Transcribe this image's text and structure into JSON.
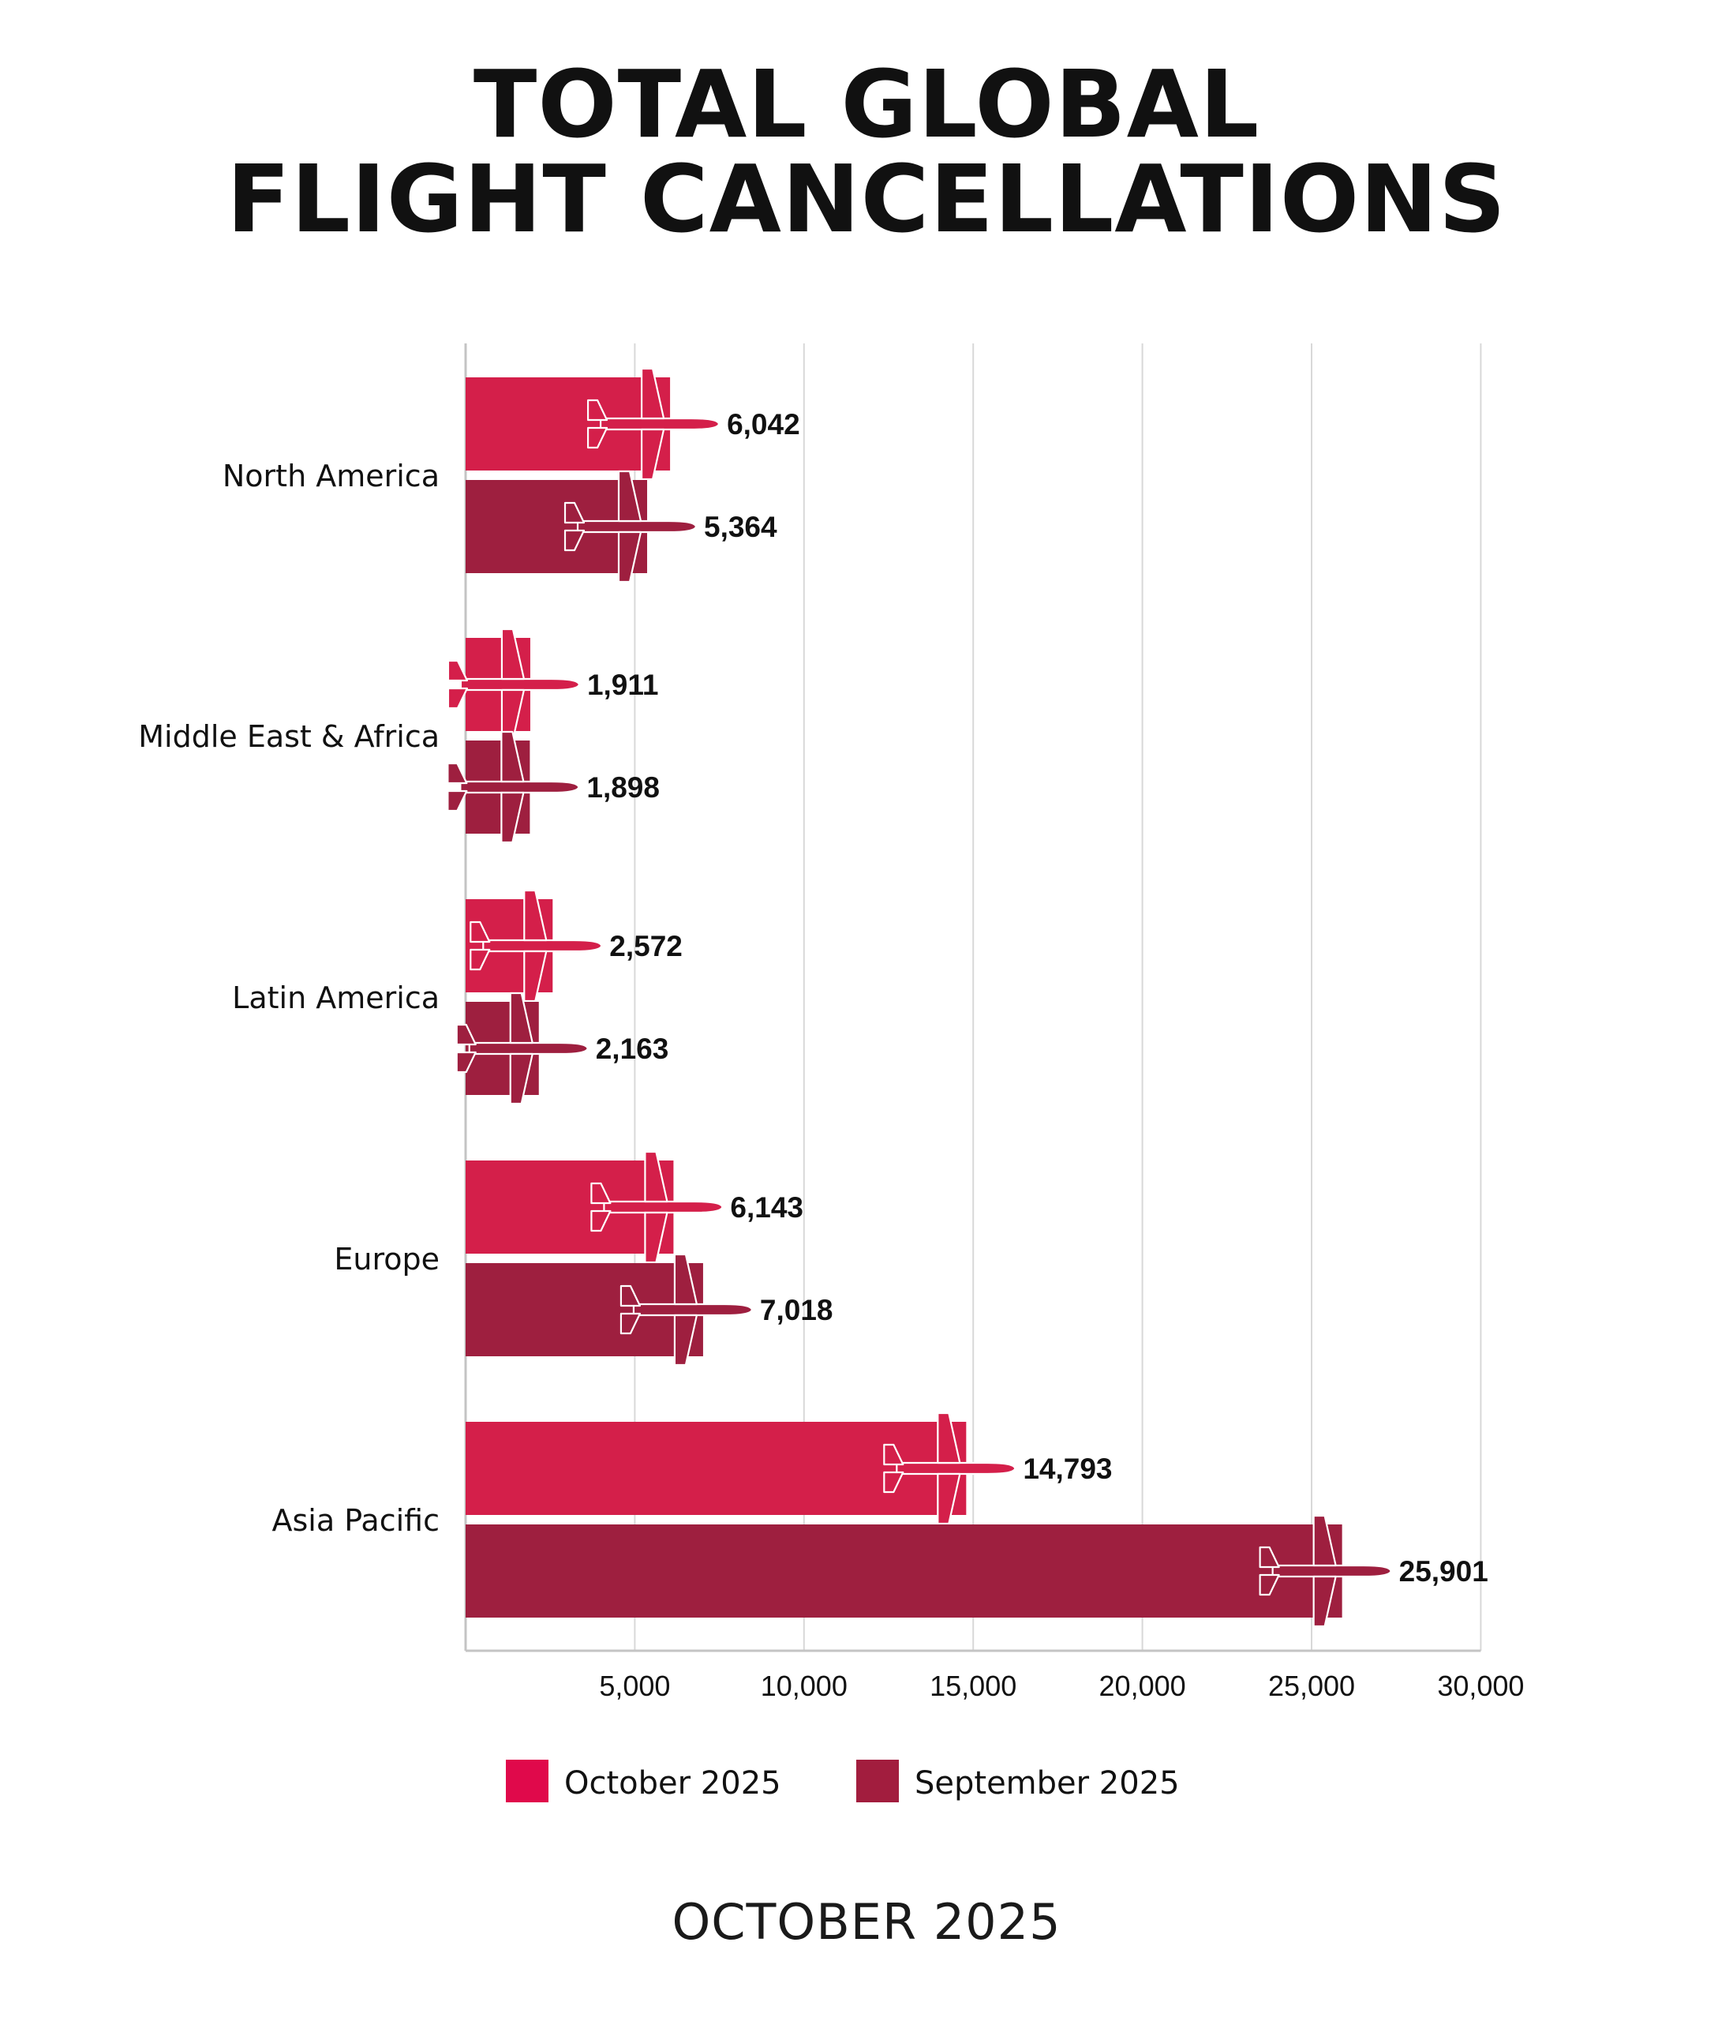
{
  "title_line1": "TOTAL GLOBAL",
  "title_line2": "FLIGHT CANCELLATIONS",
  "footer": "OCTOBER 2025",
  "colors": {
    "october": "#d41f4a",
    "september": "#9e1f3f",
    "legend_october": "#e0094b",
    "legend_september": "#a21d3e",
    "grid": "#d8d8d8",
    "axis": "#c4c4c4",
    "text": "#111111"
  },
  "plane_icon": "airplane-icon",
  "chart_data": {
    "type": "bar",
    "orientation": "horizontal",
    "title": "TOTAL GLOBAL FLIGHT CANCELLATIONS",
    "categories": [
      "North America",
      "Middle East & Africa",
      "Latin America",
      "Europe",
      "Asia Pacific"
    ],
    "series": [
      {
        "name": "October 2025",
        "values": [
          6042,
          1911,
          2572,
          6143,
          14793
        ],
        "labels": [
          "6,042",
          "1,911",
          "2,572",
          "6,143",
          "14,793"
        ]
      },
      {
        "name": "September 2025",
        "values": [
          5364,
          1898,
          2163,
          7018,
          25901
        ],
        "labels": [
          "5,364",
          "1,898",
          "2,163",
          "7,018",
          "25,901"
        ]
      }
    ],
    "xlim": [
      0,
      30000
    ],
    "xticks": [
      5000,
      10000,
      15000,
      20000,
      25000,
      30000
    ],
    "xtick_labels": [
      "5,000",
      "10,000",
      "15,000",
      "20,000",
      "25,000",
      "30,000"
    ],
    "grid": true,
    "legend_position": "bottom"
  }
}
